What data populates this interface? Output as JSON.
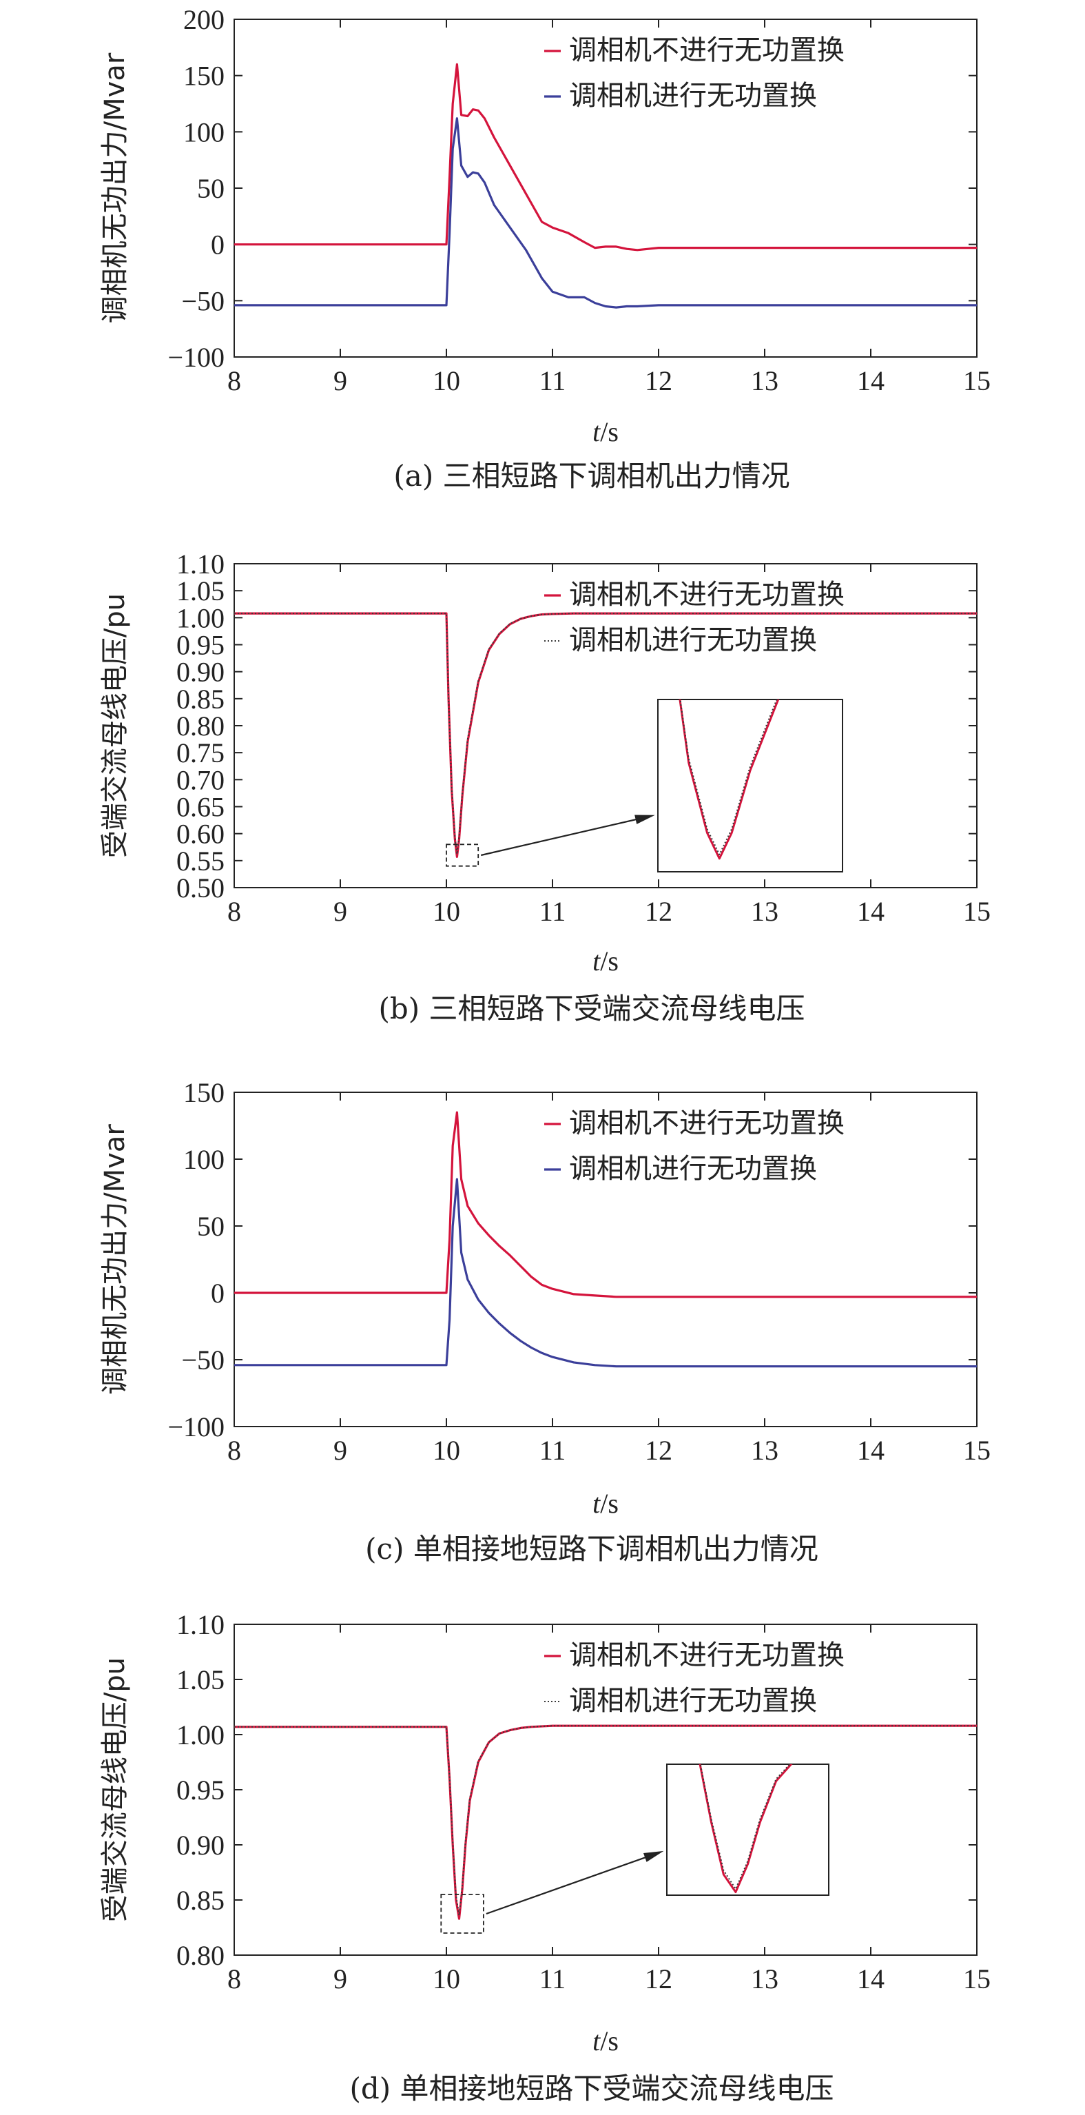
{
  "colors": {
    "red": "#d4143c",
    "blue": "#3b3f9a",
    "dark": "#3a3a3a",
    "axis": "#222222"
  },
  "chart_data": [
    {
      "id": "a",
      "type": "line",
      "caption": "(a)  三相短路下调相机出力情况",
      "xlabel": "t/s",
      "ylabel": "调相机无功出力/Mvar",
      "xlim": [
        8,
        15
      ],
      "ylim": [
        -100,
        200
      ],
      "xticks": [
        8,
        9,
        10,
        11,
        12,
        13,
        14,
        15
      ],
      "yticks": [
        -100,
        -50,
        0,
        50,
        100,
        150,
        200
      ],
      "ytick_labels": [
        "−100",
        "−50",
        "0",
        "50",
        "100",
        "150",
        "200"
      ],
      "legend_position": "top-right",
      "series": [
        {
          "name": "调相机不进行无功置换",
          "color": "#d4143c",
          "style": "solid",
          "x": [
            8,
            10.0,
            10.03,
            10.06,
            10.1,
            10.14,
            10.2,
            10.25,
            10.3,
            10.36,
            10.45,
            10.6,
            10.75,
            10.9,
            11.0,
            11.15,
            11.3,
            11.4,
            11.5,
            11.6,
            11.7,
            11.8,
            12.0,
            12.5,
            13,
            14,
            15
          ],
          "y": [
            0,
            0,
            60,
            125,
            160,
            115,
            114,
            120,
            119,
            112,
            95,
            70,
            45,
            20,
            15,
            10,
            2,
            -3,
            -2,
            -2,
            -4,
            -5,
            -3,
            -3,
            -3,
            -3,
            -3
          ]
        },
        {
          "name": "调相机进行无功置换",
          "color": "#3b3f9a",
          "style": "solid",
          "x": [
            8,
            10.0,
            10.03,
            10.06,
            10.1,
            10.14,
            10.2,
            10.25,
            10.3,
            10.36,
            10.45,
            10.6,
            10.75,
            10.9,
            11.0,
            11.15,
            11.3,
            11.4,
            11.5,
            11.6,
            11.7,
            11.8,
            12.0,
            12.5,
            13,
            14,
            15
          ],
          "y": [
            -54,
            -54,
            10,
            85,
            112,
            70,
            60,
            64,
            63,
            55,
            35,
            15,
            -5,
            -30,
            -42,
            -47,
            -47,
            -52,
            -55,
            -56,
            -55,
            -55,
            -54,
            -54,
            -54,
            -54,
            -54
          ]
        }
      ]
    },
    {
      "id": "b",
      "type": "line",
      "caption": "(b) 三相短路下受端交流母线电压",
      "xlabel": "t/s",
      "ylabel": "受端交流母线电压/pu",
      "xlim": [
        8,
        15
      ],
      "ylim": [
        0.5,
        1.1
      ],
      "xticks": [
        8,
        9,
        10,
        11,
        12,
        13,
        14,
        15
      ],
      "yticks": [
        0.5,
        0.55,
        0.6,
        0.65,
        0.7,
        0.75,
        0.8,
        0.85,
        0.9,
        0.95,
        1.0,
        1.05,
        1.1
      ],
      "ytick_labels": [
        "0.50",
        "0.55",
        "0.60",
        "0.65",
        "0.70",
        "0.75",
        "0.80",
        "0.85",
        "0.90",
        "0.95",
        "1.00",
        "1.05",
        "1.10"
      ],
      "legend_position": "top-right",
      "series": [
        {
          "name": "调相机不进行无功置换",
          "color": "#d4143c",
          "style": "solid",
          "x": [
            8,
            10.0,
            10.02,
            10.05,
            10.08,
            10.1,
            10.12,
            10.15,
            10.2,
            10.3,
            10.4,
            10.5,
            10.6,
            10.7,
            10.8,
            10.9,
            11.0,
            11.2,
            11.5,
            15
          ],
          "y": [
            1.008,
            1.008,
            0.85,
            0.68,
            0.59,
            0.557,
            0.59,
            0.67,
            0.77,
            0.88,
            0.94,
            0.97,
            0.988,
            0.998,
            1.003,
            1.006,
            1.007,
            1.008,
            1.008,
            1.008
          ]
        },
        {
          "name": "调相机进行无功置换",
          "color": "#3a3a3a",
          "style": "dotted",
          "x": [
            8,
            10.0,
            10.02,
            10.05,
            10.08,
            10.1,
            10.12,
            10.15,
            10.2,
            10.3,
            10.4,
            10.5,
            10.6,
            10.7,
            10.8,
            10.9,
            11.0,
            11.2,
            11.5,
            15
          ],
          "y": [
            1.008,
            1.008,
            0.85,
            0.685,
            0.595,
            0.562,
            0.595,
            0.675,
            0.775,
            0.883,
            0.942,
            0.971,
            0.989,
            0.998,
            1.003,
            1.006,
            1.007,
            1.008,
            1.008,
            1.008
          ]
        }
      ],
      "inset": {
        "zoom_box_x": [
          10.0,
          10.3
        ],
        "zoom_box_y": [
          0.54,
          0.58
        ],
        "vmin": 0.54,
        "vmax": 0.75
      }
    },
    {
      "id": "c",
      "type": "line",
      "caption": "(c) 单相接地短路下调相机出力情况",
      "xlabel": "t/s",
      "ylabel": "调相机无功出力/Mvar",
      "xlim": [
        8,
        15
      ],
      "ylim": [
        -100,
        150
      ],
      "xticks": [
        8,
        9,
        10,
        11,
        12,
        13,
        14,
        15
      ],
      "yticks": [
        -100,
        -50,
        0,
        50,
        100,
        150
      ],
      "ytick_labels": [
        "−100",
        "−50",
        "0",
        "50",
        "100",
        "150"
      ],
      "legend_position": "top-right",
      "series": [
        {
          "name": "调相机不进行无功置换",
          "color": "#d4143c",
          "style": "solid",
          "x": [
            8,
            10.0,
            10.03,
            10.06,
            10.1,
            10.14,
            10.2,
            10.3,
            10.4,
            10.5,
            10.6,
            10.7,
            10.8,
            10.9,
            11.0,
            11.2,
            11.4,
            11.6,
            12.0,
            13,
            14,
            15
          ],
          "y": [
            0,
            0,
            40,
            110,
            135,
            85,
            65,
            52,
            43,
            35,
            28,
            20,
            12,
            6,
            3,
            -1,
            -2,
            -3,
            -3,
            -3,
            -3,
            -3
          ]
        },
        {
          "name": "调相机进行无功置换",
          "color": "#3b3f9a",
          "style": "solid",
          "x": [
            8,
            10.0,
            10.03,
            10.06,
            10.1,
            10.14,
            10.2,
            10.3,
            10.4,
            10.5,
            10.6,
            10.7,
            10.8,
            10.9,
            11.0,
            11.2,
            11.4,
            11.6,
            12.0,
            13,
            14,
            15
          ],
          "y": [
            -54,
            -54,
            -20,
            50,
            85,
            30,
            10,
            -5,
            -15,
            -23,
            -30,
            -36,
            -41,
            -45,
            -48,
            -52,
            -54,
            -55,
            -55,
            -55,
            -55,
            -55
          ]
        }
      ]
    },
    {
      "id": "d",
      "type": "line",
      "caption": "(d) 单相接地短路下受端交流母线电压",
      "xlabel": "t/s",
      "ylabel": "受端交流母线电压/pu",
      "xlim": [
        8,
        15
      ],
      "ylim": [
        0.8,
        1.1
      ],
      "xticks": [
        8,
        9,
        10,
        11,
        12,
        13,
        14,
        15
      ],
      "yticks": [
        0.8,
        0.85,
        0.9,
        0.95,
        1.0,
        1.05,
        1.1
      ],
      "ytick_labels": [
        "0.80",
        "0.85",
        "0.90",
        "0.95",
        "1.00",
        "1.05",
        "1.10"
      ],
      "legend_position": "top-right",
      "series": [
        {
          "name": "调相机不进行无功置换",
          "color": "#d4143c",
          "style": "solid",
          "x": [
            8,
            10.0,
            10.03,
            10.06,
            10.09,
            10.12,
            10.15,
            10.18,
            10.22,
            10.3,
            10.4,
            10.5,
            10.6,
            10.7,
            10.8,
            11.0,
            11.5,
            15
          ],
          "y": [
            1.007,
            1.007,
            0.96,
            0.9,
            0.85,
            0.833,
            0.86,
            0.9,
            0.94,
            0.975,
            0.993,
            1.001,
            1.004,
            1.006,
            1.007,
            1.008,
            1.008,
            1.008
          ]
        },
        {
          "name": "调相机进行无功置换",
          "color": "#3a3a3a",
          "style": "dotted",
          "x": [
            8,
            10.0,
            10.03,
            10.06,
            10.09,
            10.12,
            10.15,
            10.18,
            10.22,
            10.3,
            10.4,
            10.5,
            10.6,
            10.7,
            10.8,
            11.0,
            11.5,
            15
          ],
          "y": [
            1.007,
            1.007,
            0.962,
            0.903,
            0.854,
            0.836,
            0.863,
            0.903,
            0.942,
            0.976,
            0.993,
            1.001,
            1.004,
            1.006,
            1.007,
            1.008,
            1.008,
            1.008
          ]
        }
      ],
      "inset": {
        "zoom_box_x": [
          9.95,
          10.35
        ],
        "zoom_box_y": [
          0.82,
          0.855
        ],
        "vmin": 0.83,
        "vmax": 0.95
      }
    }
  ]
}
